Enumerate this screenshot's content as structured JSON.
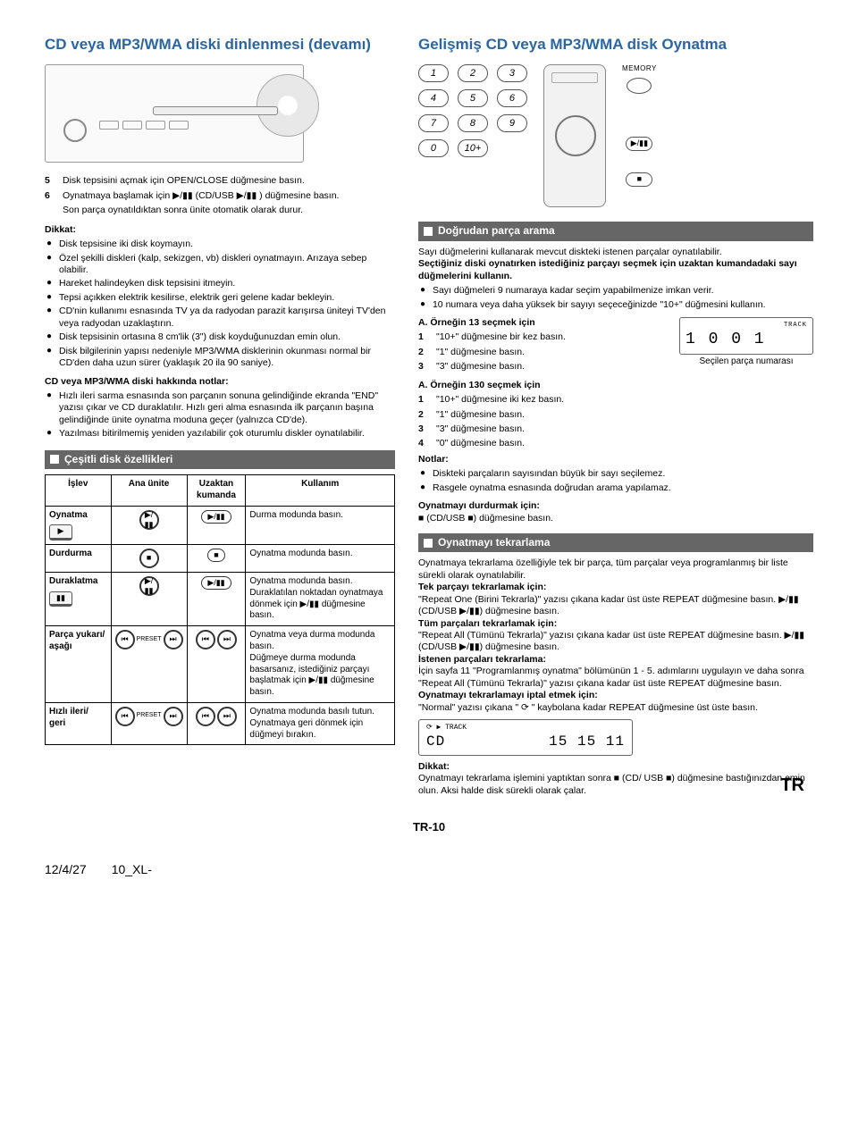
{
  "page_label": "TR-10",
  "date_stamp": "12/4/27",
  "file_stamp": "10_XL-",
  "tr_side": "TR",
  "left": {
    "title": "CD veya MP3/WMA diski dinlenmesi (devamı)",
    "steps": [
      {
        "n": "5",
        "t": "Disk tepsisini açmak için OPEN/CLOSE düğmesine basın."
      },
      {
        "n": "6",
        "t": "Oynatmaya başlamak için ▶/▮▮ (CD/USB ▶/▮▮ ) düğmesine basın."
      }
    ],
    "after_steps": "Son parça oynatıldıktan sonra ünite otomatik olarak durur.",
    "dikkat_label": "Dikkat:",
    "dikkat": [
      "Disk tepsisine iki disk koymayın.",
      "Özel şekilli diskleri (kalp, sekizgen, vb) diskleri oynatmayın. Arızaya sebep olabilir.",
      "Hareket halindeyken disk tepsisini itmeyin.",
      "Tepsi açıkken elektrik kesilirse, elektrik geri gelene kadar bekleyin.",
      "CD'nin kullanımı esnasında TV ya da radyodan parazit karışırsa üniteyi TV'den veya radyodan uzaklaştırın.",
      "Disk tepsisinin ortasına 8 cm'lik (3\") disk koyduğunuzdan emin olun.",
      "Disk bilgilerinin yapısı nedeniyle MP3/WMA disklerinin okunması normal bir CD'den daha uzun sürer (yaklaşık 20 ila 90 saniye)."
    ],
    "notes_title": "CD veya MP3/WMA diski hakkında notlar:",
    "notes": [
      "Hızlı ileri sarma esnasında son parçanın sonuna gelindiğinde ekranda \"END\" yazısı çıkar ve CD duraklatılır. Hızlı geri alma esnasında ilk parçanın başına gelindiğinde ünite oynatma moduna geçer (yalnızca CD'de).",
      "Yazılması bitirilmemiş yeniden yazılabilir çok oturumlu diskler oynatılabilir."
    ],
    "sectionbar": "Çeşitli disk özellikleri",
    "table": {
      "head": [
        "İşlev",
        "Ana ünite",
        "Uzaktan kumanda",
        "Kullanım"
      ],
      "rows": [
        {
          "func": "Oynatma",
          "sub": "▶",
          "unit_sym": "▶/▮▮",
          "remote_sym": "▶/▮▮",
          "use": "Durma modunda basın."
        },
        {
          "func": "Durdurma",
          "sub": "",
          "unit_sym": "■",
          "remote_sym": "■",
          "use": "Oynatma modunda basın."
        },
        {
          "func": "Duraklatma",
          "sub": "▮▮",
          "unit_sym": "▶/▮▮",
          "remote_sym": "▶/▮▮",
          "use": "Oynatma modunda basın.\nDuraklatılan noktadan oynatmaya dönmek için ▶/▮▮ düğmesine basın."
        },
        {
          "func": "Parça yukarı/ aşağı",
          "sub": "",
          "unit_sym": "⏮ PRESET ⏭",
          "remote_sym": "⏮ ⏭",
          "use": "Oynatma veya durma modunda basın.\nDüğmeye durma modunda basarsanız, istediğiniz parçayı başlatmak için ▶/▮▮ düğmesine basın."
        },
        {
          "func": "Hızlı ileri/ geri",
          "sub": "",
          "unit_sym": "⏮ PRESET ⏭",
          "remote_sym": "⏮ ⏭",
          "use": "Oynatma modunda basılı tutun.\nOynatmaya geri dönmek için düğmeyi bırakın."
        }
      ]
    }
  },
  "right": {
    "title": "Gelişmiş CD veya MP3/WMA disk Oynatma",
    "numpad": [
      "1",
      "2",
      "3",
      "4",
      "5",
      "6",
      "7",
      "8",
      "9",
      "0",
      "10+"
    ],
    "memory_label": "MEMORY",
    "side_btns": [
      "▶/▮▮",
      "■"
    ],
    "sec1_title": "Doğrudan parça arama",
    "sec1_intro1": "Sayı düğmelerini kullanarak mevcut diskteki istenen parçalar oynatılabilir.",
    "sec1_intro2_bold": "Seçtiğiniz diski oynatırken istediğiniz parçayı seçmek için uzaktan kumandadaki sayı düğmelerini kullanın.",
    "sec1_bullets": [
      "Sayı düğmeleri 9 numaraya kadar seçim yapabilmenize imkan verir.",
      "10 numara veya daha yüksek bir sayıyı seçeceğinizde \"10+\" düğmesini kullanın."
    ],
    "ex13_title": "A. Örneğin 13 seçmek için",
    "ex13_steps": [
      {
        "n": "1",
        "t": "\"10+\" düğmesine bir kez basın."
      },
      {
        "n": "2",
        "t": "\"1\" düğmesine basın."
      },
      {
        "n": "3",
        "t": "\"3\" düğmesine basın."
      }
    ],
    "lcd_track": "TRACK",
    "lcd_value": "1   0 0 1",
    "lcd_caption": "Seçilen parça numarası",
    "ex130_title": "A. Örneğin 130 seçmek için",
    "ex130_steps": [
      {
        "n": "1",
        "t": "\"10+\" düğmesine iki kez basın."
      },
      {
        "n": "2",
        "t": "\"1\" düğmesine basın."
      },
      {
        "n": "3",
        "t": "\"3\" düğmesine basın."
      },
      {
        "n": "4",
        "t": "\"0\" düğmesine basın."
      }
    ],
    "notlar_label": "Notlar:",
    "notlar": [
      "Diskteki parçaların sayısından büyük bir sayı seçilemez.",
      "Rasgele oynatma esnasında doğrudan arama yapılamaz."
    ],
    "stop_title": "Oynatmayı durdurmak için:",
    "stop_body": "■ (CD/USB ■) düğmesine basın.",
    "sec2_title": "Oynatmayı tekrarlama",
    "sec2_intro": "Oynatmaya tekrarlama özelliğiyle tek bir parça, tüm parçalar veya programlanmış bir liste sürekli olarak oynatılabilir.",
    "sec2_parts": [
      {
        "h": "Tek parçayı tekrarlamak için:",
        "b": "\"Repeat One (Birini Tekrarla)\" yazısı çıkana kadar üst üste REPEAT düğmesine basın. ▶/▮▮ (CD/USB ▶/▮▮) düğmesine basın."
      },
      {
        "h": "Tüm parçaları tekrarlamak için:",
        "b": "\"Repeat All (Tümünü Tekrarla)\" yazısı çıkana kadar üst üste REPEAT düğmesine basın. ▶/▮▮ (CD/USB ▶/▮▮) düğmesine basın."
      },
      {
        "h": "İstenen parçaları tekrarlama:",
        "b": "İçin sayfa 11 \"Programlanmış oynatma\" bölümünün 1 - 5. adımlarını uygulayın ve daha sonra \"Repeat All (Tümünü Tekrarla)\" yazısı çıkana kadar üst üste REPEAT düğmesine basın."
      },
      {
        "h": "Oynatmayı tekrarlamayı iptal etmek için:",
        "b": "\"Normal\" yazısı çıkana \" ⟳ \" kaybolana kadar REPEAT düğmesine üst üste basın."
      }
    ],
    "lcd2_top": "⟳   ▶          TRACK",
    "lcd2_main_l": "CD",
    "lcd2_main_r": "15   15 11",
    "dikkat2_label": "Dikkat:",
    "dikkat2_body": "Oynatmayı tekrarlama işlemini yaptıktan sonra ■ (CD/ USB ■) düğmesine bastığınızdan emin olun. Aksi halde disk sürekli olarak çalar."
  },
  "colors": {
    "title": "#2a66a3",
    "bar_bg": "#666666",
    "bar_fg": "#ffffff",
    "border": "#000000",
    "page_bg": "#ffffff"
  },
  "fontsizes": {
    "title": 17,
    "body": 10.5,
    "bar": 12,
    "table": 10,
    "lcd": 18
  }
}
